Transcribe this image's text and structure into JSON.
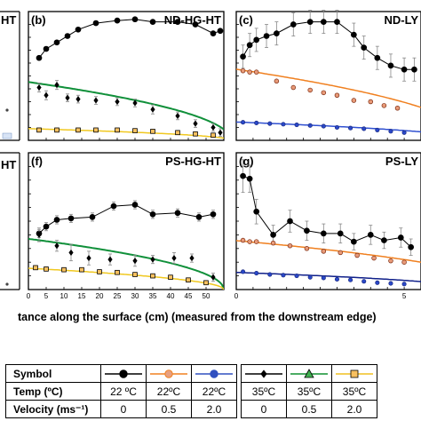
{
  "figure": {
    "xlabel": "tance along the surface (cm) (measured from the downstream edge)"
  },
  "legend": {
    "row_labels": {
      "symbol": "Symbol",
      "temp": "Temp (ºC)",
      "velocity": "Velocity (ms⁻¹)"
    },
    "entries": [
      {
        "marker": "circle",
        "fill": "#000000",
        "line": "#000000",
        "temp": "22 ºC",
        "velocity": "0"
      },
      {
        "marker": "circle",
        "fill": "#e8a080",
        "line": "#f08020",
        "temp": "22ºC",
        "velocity": "0.5"
      },
      {
        "marker": "circle",
        "fill": "#3050c0",
        "line": "#3050c0",
        "temp": "22ºC",
        "velocity": "2.0"
      },
      {
        "marker": "diamond",
        "fill": "#000000",
        "line": "#000000",
        "temp": "35ºC",
        "velocity": "0"
      },
      {
        "marker": "triangle",
        "fill": "#40b050",
        "line": "#109030",
        "temp": "35ºC",
        "velocity": "0.5"
      },
      {
        "marker": "square",
        "fill": "#f8c060",
        "line": "#f0c020",
        "temp": "35ºC",
        "velocity": "2.0"
      }
    ]
  },
  "chart_data": [
    {
      "panel": "(b)",
      "title": "ND-HG-HT",
      "type": "scatter",
      "xlim": [
        0,
        55
      ],
      "ylim": [
        0,
        10
      ],
      "x_ticks": [],
      "series": [
        {
          "style": "black-circle",
          "x": [
            3,
            5,
            8,
            11,
            14,
            19,
            25,
            30,
            35,
            42,
            47,
            52,
            54
          ],
          "y": [
            6.4,
            7.1,
            7.6,
            8.1,
            8.6,
            9.1,
            9.3,
            9.4,
            9.2,
            9.2,
            9.0,
            8.3,
            8.5
          ],
          "err": [
            0,
            0,
            0,
            0,
            0,
            0,
            0,
            0,
            0,
            0,
            0,
            0,
            0
          ]
        },
        {
          "style": "black-diamond",
          "x": [
            3,
            5,
            8,
            11,
            14,
            19,
            25,
            30,
            35,
            42,
            47,
            52,
            54
          ],
          "y": [
            4.1,
            3.5,
            4.3,
            3.3,
            3.2,
            3.1,
            3.0,
            2.9,
            2.4,
            1.9,
            1.3,
            1.0,
            0.6
          ],
          "err": [
            0.35,
            0.35,
            0.35,
            0.3,
            0.3,
            0.3,
            0.3,
            0.3,
            0.35,
            0.3,
            0.3,
            0.3,
            0.3
          ]
        },
        {
          "style": "orange-square",
          "x": [
            3,
            8,
            14,
            19,
            25,
            30,
            35,
            42,
            47,
            52
          ],
          "y": [
            0.8,
            0.8,
            0.8,
            0.8,
            0.8,
            0.75,
            0.7,
            0.6,
            0.5,
            0.4
          ],
          "err": [
            0,
            0,
            0,
            0,
            0,
            0,
            0,
            0,
            0,
            0
          ]
        }
      ],
      "fits": [
        {
          "style": "green",
          "type": "sqrt",
          "x0": 57,
          "a": 0.6
        },
        {
          "style": "yellow",
          "type": "sqrt",
          "x0": 57,
          "a": 0.12
        }
      ]
    },
    {
      "panel": "(c)",
      "title": "ND-LY",
      "type": "scatter",
      "xlim": [
        0,
        55
      ],
      "ylim": [
        0,
        10
      ],
      "x_ticks": [],
      "series": [
        {
          "style": "black-circle",
          "x": [
            2,
            4,
            6,
            9,
            12,
            17,
            22,
            26,
            30,
            35,
            38,
            42,
            46,
            50,
            53
          ],
          "y": [
            6.5,
            7.4,
            7.8,
            8.1,
            8.3,
            9.0,
            9.2,
            9.2,
            9.2,
            8.2,
            7.2,
            6.4,
            5.8,
            5.5,
            5.5
          ],
          "err": [
            0.9,
            0.9,
            0.9,
            0.9,
            0.9,
            0.9,
            0.9,
            0.9,
            0.9,
            0.9,
            0.9,
            0.9,
            0.9,
            0.9,
            0.9
          ]
        },
        {
          "style": "orange-circle",
          "x": [
            2,
            4,
            6,
            12,
            17,
            22,
            26,
            30,
            35,
            40,
            44,
            48
          ],
          "y": [
            5.4,
            5.3,
            5.3,
            4.6,
            4.1,
            3.9,
            3.7,
            3.5,
            3.1,
            3.0,
            2.7,
            2.5
          ],
          "err": [
            0,
            0,
            0,
            0,
            0,
            0,
            0,
            0,
            0,
            0,
            0,
            0
          ]
        },
        {
          "style": "blue-circle",
          "x": [
            2,
            6,
            10,
            14,
            18,
            22,
            26,
            30,
            34,
            38,
            42,
            46,
            50
          ],
          "y": [
            1.4,
            1.35,
            1.3,
            1.25,
            1.2,
            1.15,
            1.1,
            1.0,
            0.95,
            0.9,
            0.8,
            0.7,
            0.6
          ],
          "err": [
            0,
            0,
            0,
            0,
            0,
            0,
            0,
            0,
            0,
            0,
            0,
            0,
            0
          ]
        }
      ],
      "fits": [
        {
          "style": "orange",
          "type": "sqrt",
          "x0": 70,
          "a": 0.66
        },
        {
          "style": "blue",
          "type": "sqrt",
          "x0": 70,
          "a": 0.17
        }
      ]
    },
    {
      "panel": "(f)",
      "title": "PS-HG-HT",
      "type": "scatter",
      "xlim": [
        0,
        55
      ],
      "ylim": [
        0,
        10
      ],
      "x_ticks": [
        "0",
        "5",
        "10",
        "15",
        "20",
        "25",
        "30",
        "35",
        "40",
        "45",
        "50"
      ],
      "series": [
        {
          "style": "black-circle",
          "x": [
            3,
            5,
            8,
            12,
            18,
            24,
            30,
            35,
            42,
            48,
            52
          ],
          "y": [
            4.1,
            4.6,
            5.1,
            5.2,
            5.3,
            6.1,
            6.2,
            5.5,
            5.6,
            5.3,
            5.5
          ],
          "err": [
            0.3,
            0.3,
            0.3,
            0.3,
            0.3,
            0.3,
            0.3,
            0.3,
            0.3,
            0.3,
            0.3
          ]
        },
        {
          "style": "black-diamond",
          "x": [
            3,
            8,
            12,
            17,
            23,
            30,
            35,
            41,
            46,
            52
          ],
          "y": [
            4.0,
            3.2,
            2.7,
            2.3,
            2.2,
            2.1,
            2.2,
            2.3,
            2.3,
            0.9
          ],
          "err": [
            0.5,
            0.4,
            0.6,
            0.5,
            0.4,
            0.4,
            0.3,
            0.4,
            0.3,
            0.3
          ]
        },
        {
          "style": "orange-square",
          "x": [
            2,
            5,
            10,
            15,
            20,
            25,
            30,
            35,
            40,
            45,
            50
          ],
          "y": [
            1.6,
            1.5,
            1.45,
            1.45,
            1.3,
            1.25,
            1.1,
            1.0,
            0.9,
            0.7,
            0.5
          ],
          "err": [
            0,
            0,
            0,
            0,
            0,
            0,
            0,
            0,
            0,
            0,
            0
          ]
        }
      ],
      "fits": [
        {
          "style": "green",
          "type": "sqrt",
          "x0": 55,
          "a": 0.5
        },
        {
          "style": "yellow",
          "type": "sqrt",
          "x0": 55,
          "a": 0.21
        }
      ]
    },
    {
      "panel": "(g)",
      "title": "PS-LY",
      "type": "scatter",
      "xlim": [
        0,
        55
      ],
      "ylim": [
        0,
        10
      ],
      "x_ticks": [
        "0",
        "",
        "",
        "",
        "",
        "",
        "",
        "",
        "",
        "",
        "5"
      ],
      "series": [
        {
          "style": "black-circle",
          "x": [
            2,
            4,
            6,
            11,
            16,
            21,
            26,
            31,
            35,
            40,
            44,
            49,
            52
          ],
          "y": [
            8.3,
            8.1,
            5.7,
            4.0,
            5.0,
            4.3,
            4.1,
            4.1,
            3.5,
            4.0,
            3.6,
            3.8,
            3.1
          ],
          "err": [
            1.2,
            1.0,
            0.9,
            0.7,
            0.8,
            0.7,
            0.7,
            0.7,
            0.6,
            0.7,
            0.6,
            0.7,
            0.6
          ]
        },
        {
          "style": "orange-circle",
          "x": [
            2,
            4,
            6,
            11,
            16,
            21,
            26,
            31,
            36,
            41,
            46,
            50
          ],
          "y": [
            3.6,
            3.5,
            3.5,
            3.4,
            3.2,
            3.0,
            2.8,
            2.7,
            2.5,
            2.3,
            2.1,
            2.0
          ],
          "err": [
            0,
            0,
            0,
            0,
            0,
            0,
            0,
            0,
            0,
            0,
            0,
            0
          ]
        },
        {
          "style": "blue-circle",
          "x": [
            2,
            6,
            10,
            14,
            18,
            22,
            26,
            30,
            34,
            38,
            42,
            46,
            50
          ],
          "y": [
            1.3,
            1.2,
            1.1,
            1.05,
            1.0,
            0.9,
            0.85,
            0.75,
            0.7,
            0.6,
            0.5,
            0.45,
            0.4
          ],
          "err": [
            0,
            0,
            0,
            0,
            0,
            0,
            0,
            0,
            0,
            0,
            0,
            0,
            0
          ]
        }
      ],
      "fits": [
        {
          "style": "orange",
          "type": "sqrt",
          "x0": 80,
          "a": 0.4
        },
        {
          "style": "navy",
          "type": "sqrt",
          "x0": 70,
          "a": 0.15
        }
      ]
    }
  ],
  "partial_panels": [
    {
      "label": "HT"
    },
    {
      "label": "HT"
    }
  ]
}
